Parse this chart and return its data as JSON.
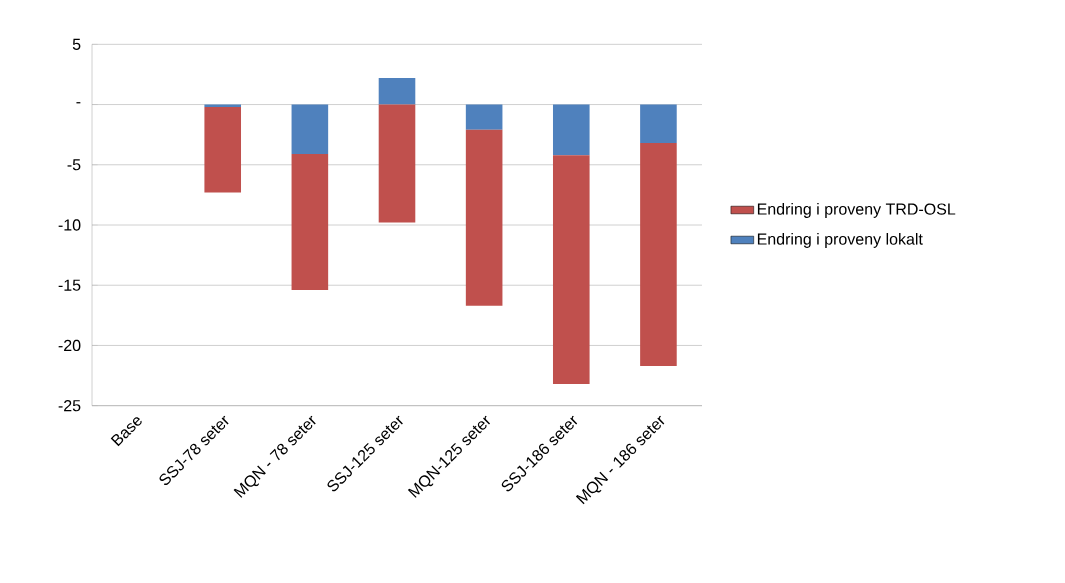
{
  "chart_data": {
    "type": "bar",
    "stacked": true,
    "categories": [
      "Base",
      "SSJ-78 seter",
      "MQN - 78 seter",
      "SSJ-125 seter",
      "MQN-125 seter",
      "SSJ-186 seter",
      "MQN - 186 seter"
    ],
    "series": [
      {
        "name": "Endring i proveny lokalt",
        "color": "#4f81bd",
        "values": [
          0,
          -0.2,
          -4.1,
          2.2,
          -2.1,
          -4.2,
          -3.2
        ]
      },
      {
        "name": "Endring i proveny TRD-OSL",
        "color": "#c0504d",
        "values": [
          0,
          -7.1,
          -11.3,
          -9.8,
          -14.6,
          -19.0,
          -18.5
        ]
      }
    ],
    "ylim": [
      -25,
      5
    ],
    "yticks": [
      -25,
      -20,
      -15,
      -10,
      -5,
      {
        "value": 0,
        "label": "-"
      },
      5
    ],
    "grid": "y",
    "legend": "right"
  }
}
